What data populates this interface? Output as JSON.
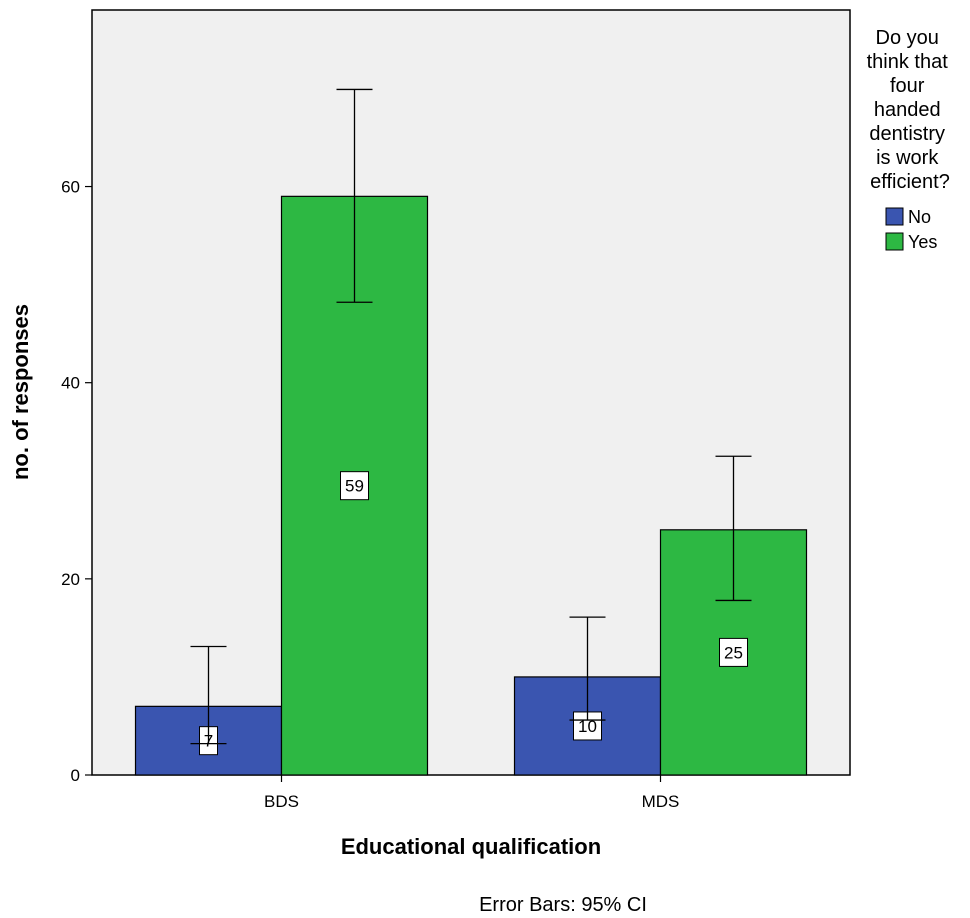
{
  "chart_data": {
    "type": "bar",
    "categories": [
      "BDS",
      "MDS"
    ],
    "series": [
      {
        "name": "No",
        "color": "#3a55b0",
        "values": [
          7,
          10
        ],
        "ci_low": [
          3.2,
          5.6
        ],
        "ci_high": [
          13.1,
          16.1
        ],
        "labels": [
          "7",
          "10"
        ]
      },
      {
        "name": "Yes",
        "color": "#2db843",
        "values": [
          59,
          25
        ],
        "ci_low": [
          48.2,
          17.8
        ],
        "ci_high": [
          69.9,
          32.5
        ],
        "labels": [
          "59",
          "25"
        ]
      }
    ],
    "xlabel": "Educational qualification",
    "ylabel": "no. of responses",
    "ylim": [
      0,
      78
    ],
    "yticks": [
      0,
      20,
      40,
      60
    ],
    "ytick_labels": [
      "0",
      "20",
      "40",
      "60"
    ],
    "legend_title": [
      "Do you",
      "think that",
      "four",
      "handed",
      "dentistry",
      "is work",
      "efficient?"
    ],
    "legend_position": "right",
    "footnote": "Error Bars: 95% CI",
    "plot_background": "#f0f0f0",
    "grid": false
  }
}
